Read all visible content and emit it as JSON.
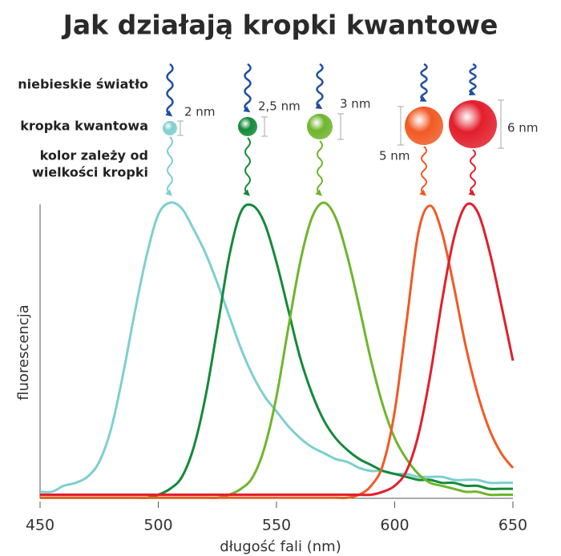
{
  "chart_data": {
    "type": "line",
    "title": "Jak działają kropki kwantowe",
    "x_label": "długość fali (nm)",
    "y_label": "fluorescencja",
    "labels": {
      "incoming": "niebieskie światło",
      "dot": "kropka kwantowa",
      "result": [
        "kolor zależy od",
        "wielkości kropki"
      ]
    },
    "dot_sizes": [
      "2 nm",
      "2,5 nm",
      "3 nm",
      "5 nm",
      "6 nm"
    ],
    "x": [
      450,
      455,
      460,
      465,
      470,
      475,
      480,
      485,
      490,
      495,
      500,
      505,
      510,
      515,
      520,
      525,
      530,
      535,
      540,
      545,
      550,
      555,
      560,
      565,
      570,
      575,
      580,
      585,
      590,
      595,
      600,
      605,
      610,
      615,
      620,
      625,
      630,
      635,
      640,
      645,
      650
    ],
    "xlim": [
      450,
      650
    ],
    "xticks": [
      450,
      500,
      550,
      600,
      650
    ],
    "ylim": [
      0,
      1
    ],
    "series": [
      {
        "color": "#7ecfcf",
        "values": [
          0.03,
          0.03,
          0.05,
          0.06,
          0.08,
          0.13,
          0.24,
          0.42,
          0.63,
          0.82,
          0.96,
          1.0,
          0.98,
          0.91,
          0.83,
          0.73,
          0.62,
          0.51,
          0.42,
          0.35,
          0.3,
          0.25,
          0.21,
          0.18,
          0.16,
          0.14,
          0.13,
          0.11,
          0.1,
          0.1,
          0.09,
          0.09,
          0.08,
          0.08,
          0.08,
          0.07,
          0.07,
          0.07,
          0.06,
          0.06,
          0.06
        ]
      },
      {
        "color": "#138a3a",
        "values": [
          0.01,
          0.01,
          0.01,
          0.01,
          0.01,
          0.01,
          0.01,
          0.01,
          0.01,
          0.01,
          0.02,
          0.04,
          0.08,
          0.18,
          0.35,
          0.58,
          0.82,
          0.97,
          0.99,
          0.93,
          0.8,
          0.64,
          0.48,
          0.36,
          0.27,
          0.21,
          0.17,
          0.14,
          0.12,
          0.1,
          0.09,
          0.08,
          0.07,
          0.07,
          0.06,
          0.06,
          0.05,
          0.05,
          0.04,
          0.04,
          0.04
        ]
      },
      {
        "color": "#6fb52c",
        "values": [
          0.01,
          0.01,
          0.01,
          0.01,
          0.01,
          0.01,
          0.01,
          0.01,
          0.01,
          0.01,
          0.01,
          0.01,
          0.01,
          0.01,
          0.01,
          0.01,
          0.02,
          0.04,
          0.08,
          0.18,
          0.35,
          0.58,
          0.8,
          0.95,
          1.0,
          0.95,
          0.82,
          0.65,
          0.47,
          0.32,
          0.21,
          0.14,
          0.09,
          0.06,
          0.05,
          0.04,
          0.03,
          0.03,
          0.02,
          0.02,
          0.02
        ]
      },
      {
        "color": "#f15a24",
        "values": [
          0.01,
          0.01,
          0.01,
          0.01,
          0.01,
          0.01,
          0.01,
          0.01,
          0.01,
          0.01,
          0.01,
          0.01,
          0.01,
          0.01,
          0.01,
          0.01,
          0.01,
          0.01,
          0.01,
          0.01,
          0.01,
          0.01,
          0.01,
          0.01,
          0.01,
          0.01,
          0.01,
          0.02,
          0.05,
          0.12,
          0.3,
          0.6,
          0.9,
          0.99,
          0.9,
          0.72,
          0.52,
          0.36,
          0.24,
          0.16,
          0.11
        ]
      },
      {
        "color": "#e31e2c",
        "values": [
          0.02,
          0.02,
          0.02,
          0.02,
          0.02,
          0.02,
          0.02,
          0.02,
          0.02,
          0.02,
          0.02,
          0.02,
          0.02,
          0.02,
          0.02,
          0.02,
          0.02,
          0.02,
          0.02,
          0.02,
          0.02,
          0.02,
          0.02,
          0.02,
          0.02,
          0.02,
          0.02,
          0.02,
          0.02,
          0.03,
          0.05,
          0.1,
          0.22,
          0.42,
          0.67,
          0.88,
          0.99,
          0.97,
          0.84,
          0.66,
          0.47
        ]
      }
    ]
  }
}
